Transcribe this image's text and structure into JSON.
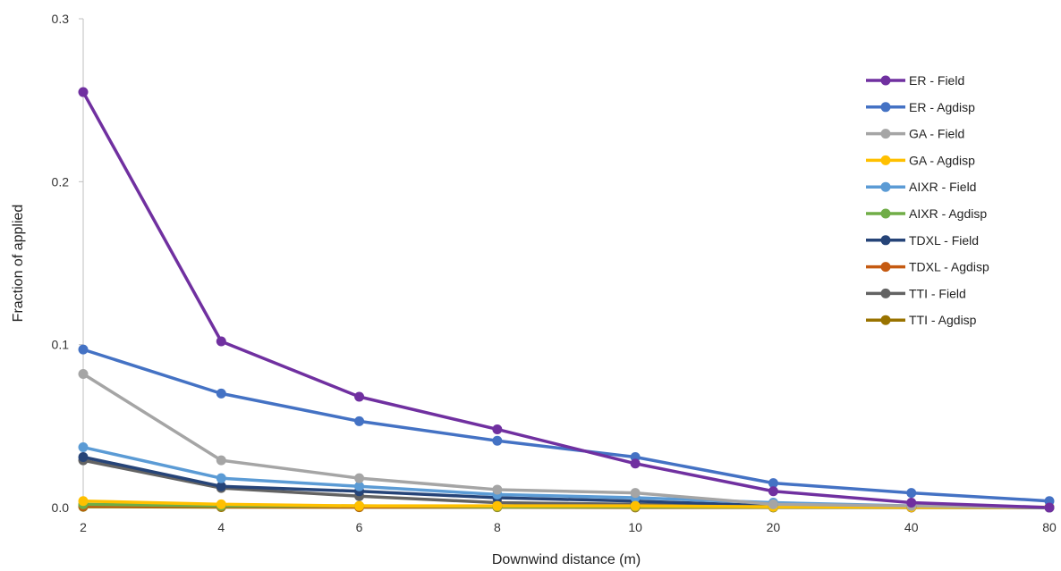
{
  "chart_data": {
    "type": "line",
    "title": "",
    "xlabel": "Downwind distance (m)",
    "ylabel": "Fraction of applied",
    "categories": [
      "2",
      "4",
      "6",
      "8",
      "10",
      "20",
      "40",
      "80"
    ],
    "ylim": [
      0,
      0.3
    ],
    "yticks": [
      "0.0",
      "0.1",
      "0.2",
      "0.3"
    ],
    "grid": false,
    "legend_position": "top-right",
    "series": [
      {
        "name": "ER - Field",
        "color": "#7030a0",
        "values": [
          0.255,
          0.102,
          0.068,
          0.048,
          0.027,
          0.01,
          0.003,
          0.0
        ]
      },
      {
        "name": "ER - Agdisp",
        "color": "#4472c4",
        "values": [
          0.097,
          0.07,
          0.053,
          0.041,
          0.031,
          0.015,
          0.009,
          0.004
        ]
      },
      {
        "name": "GA - Field",
        "color": "#a5a5a5",
        "values": [
          0.082,
          0.029,
          0.018,
          0.011,
          0.009,
          0.002,
          0.001,
          0.0
        ]
      },
      {
        "name": "GA - Agdisp",
        "color": "#ffc000",
        "values": [
          0.004,
          0.002,
          0.001,
          0.001,
          0.001,
          0.0005,
          0.0003,
          0.0002
        ]
      },
      {
        "name": "AIXR - Field",
        "color": "#5b9bd5",
        "values": [
          0.037,
          0.018,
          0.013,
          0.008,
          0.006,
          0.003,
          0.001,
          0.0
        ]
      },
      {
        "name": "AIXR - Agdisp",
        "color": "#70ad47",
        "values": [
          0.002,
          0.001,
          0.001,
          0.0005,
          0.0005,
          0.0003,
          0.0002,
          0.0001
        ]
      },
      {
        "name": "TDXL - Field",
        "color": "#264478",
        "values": [
          0.031,
          0.013,
          0.01,
          0.006,
          0.004,
          0.001,
          0.0005,
          0.0
        ]
      },
      {
        "name": "TDXL - Agdisp",
        "color": "#c55a11",
        "values": [
          0.001,
          0.0008,
          0.0005,
          0.0004,
          0.0003,
          0.0002,
          0.0001,
          0.0001
        ]
      },
      {
        "name": "TTI - Field",
        "color": "#636363",
        "values": [
          0.029,
          0.012,
          0.007,
          0.003,
          0.002,
          0.001,
          0.0005,
          0.0
        ]
      },
      {
        "name": "TTI - Agdisp",
        "color": "#997300",
        "values": [
          0.0005,
          0.0003,
          0.0002,
          0.0002,
          0.0001,
          0.0001,
          0.0001,
          0.0
        ]
      }
    ]
  }
}
